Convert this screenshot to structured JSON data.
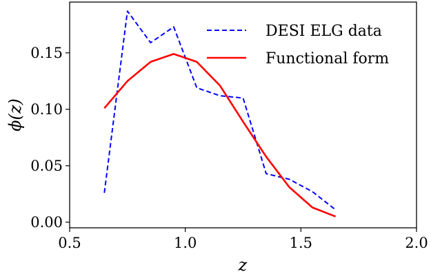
{
  "chart_data": {
    "type": "line",
    "title": "",
    "xlabel": "z",
    "ylabel": "ϕ(z)",
    "xlim": [
      0.5,
      2.0
    ],
    "ylim": [
      -0.005,
      0.195
    ],
    "xticks": [
      0.5,
      1.0,
      1.5,
      2.0
    ],
    "xtick_labels": [
      "0.5",
      "1.0",
      "1.5",
      "2.0"
    ],
    "yticks": [
      0.0,
      0.05,
      0.1,
      0.15
    ],
    "ytick_labels": [
      "0.00",
      "0.05",
      "0.10",
      "0.15"
    ],
    "grid": false,
    "legend": "top-right",
    "series": [
      {
        "name": "DESI ELG data",
        "color": "#0000ff",
        "style": "dashed",
        "x": [
          0.65,
          0.75,
          0.85,
          0.95,
          1.05,
          1.15,
          1.25,
          1.35,
          1.45,
          1.55,
          1.65
        ],
        "y": [
          0.026,
          0.187,
          0.159,
          0.173,
          0.119,
          0.112,
          0.11,
          0.043,
          0.038,
          0.027,
          0.011
        ]
      },
      {
        "name": "Functional form",
        "color": "#ff0000",
        "style": "solid",
        "x": [
          0.65,
          0.75,
          0.85,
          0.95,
          1.05,
          1.15,
          1.25,
          1.35,
          1.45,
          1.55,
          1.65
        ],
        "y": [
          0.101,
          0.125,
          0.142,
          0.149,
          0.142,
          0.121,
          0.089,
          0.058,
          0.031,
          0.013,
          0.005
        ]
      }
    ]
  }
}
